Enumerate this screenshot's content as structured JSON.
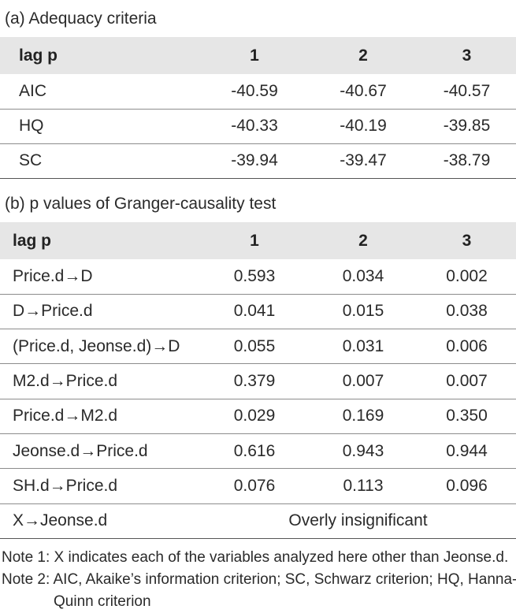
{
  "table_a": {
    "caption": "(a) Adequacy criteria",
    "header": [
      "lag p",
      "1",
      "2",
      "3"
    ],
    "rows": [
      [
        "AIC",
        "-40.59",
        "-40.67",
        "-40.57"
      ],
      [
        "HQ",
        "-40.33",
        "-40.19",
        "-39.85"
      ],
      [
        "SC",
        "-39.94",
        "-39.47",
        "-38.79"
      ]
    ]
  },
  "table_b": {
    "caption": "(b) p values of Granger-causality test",
    "header": [
      "lag p",
      "1",
      "2",
      "3"
    ],
    "rows": [
      [
        "Price.d→D",
        "0.593",
        "0.034",
        "0.002"
      ],
      [
        "D→Price.d",
        "0.041",
        "0.015",
        "0.038"
      ],
      [
        "(Price.d, Jeonse.d)→D",
        "0.055",
        "0.031",
        "0.006"
      ],
      [
        "M2.d→Price.d",
        "0.379",
        "0.007",
        "0.007"
      ],
      [
        "Price.d→M2.d",
        "0.029",
        "0.169",
        "0.350"
      ],
      [
        "Jeonse.d→Price.d",
        "0.616",
        "0.943",
        "0.944"
      ],
      [
        "SH.d→Price.d",
        "0.076",
        "0.113",
        "0.096"
      ]
    ],
    "last_row": {
      "label": "X→Jeonse.d",
      "value": "Overly insignificant"
    }
  },
  "notes": {
    "note1": "Note 1: X indicates each of the variables analyzed here other than Jeonse.d.",
    "note2_line1": "Note 2: AIC, Akaike’s information criterion; SC, Schwarz criterion; HQ, Hanna-",
    "note2_line2": "Quinn criterion"
  }
}
